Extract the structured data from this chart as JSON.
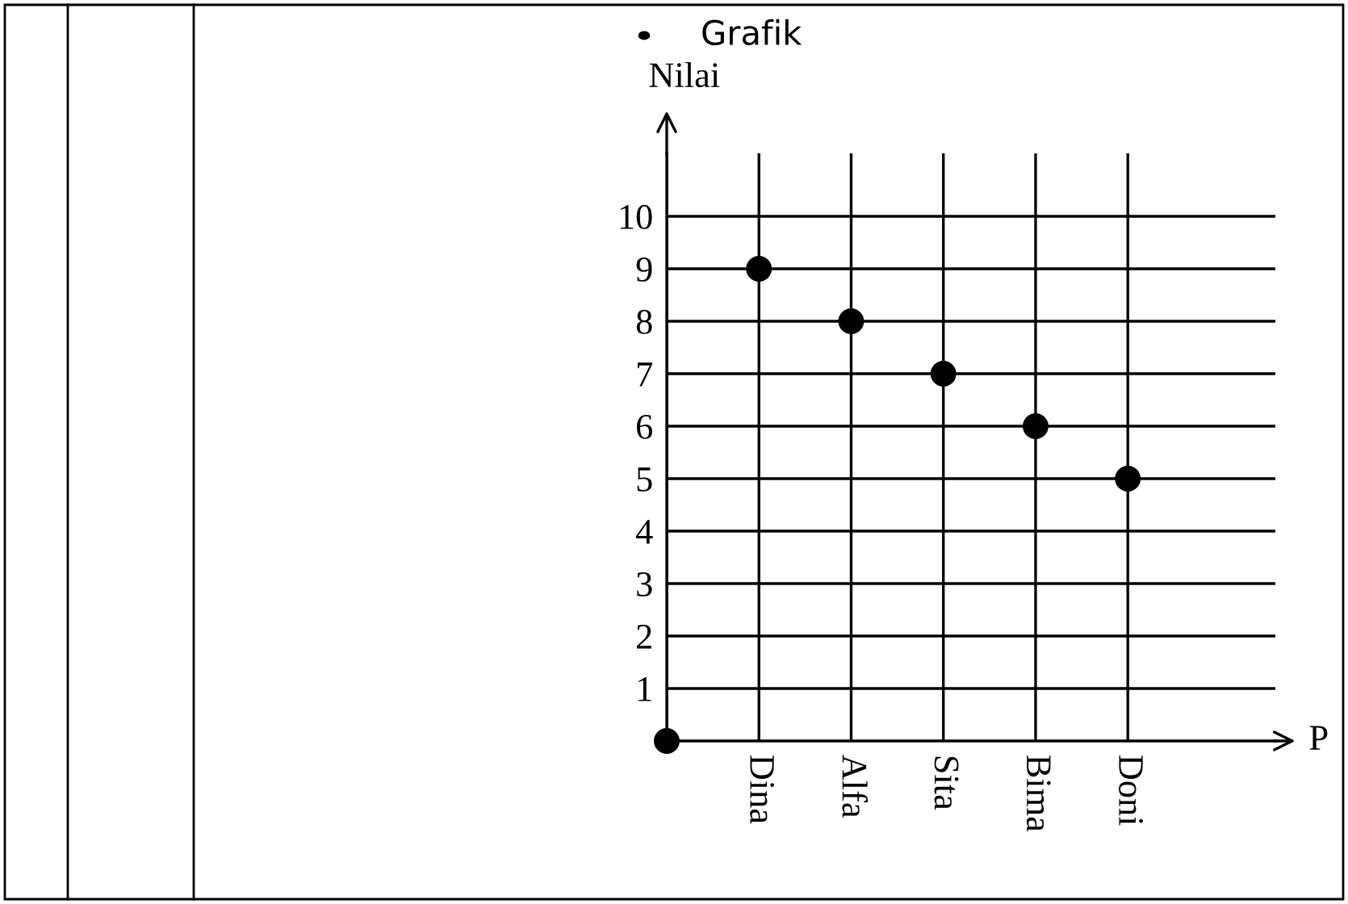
{
  "chart_data": {
    "type": "scatter",
    "title": "Grafik",
    "xlabel": "P",
    "ylabel": "Nilai",
    "categories": [
      null,
      "Dina",
      "Alfa",
      "Sita",
      "Bima",
      "Doni"
    ],
    "series": [
      {
        "color": "#000000",
        "values": [
          0,
          9,
          8,
          7,
          6,
          5
        ]
      }
    ],
    "ylim": [
      0,
      11.2
    ],
    "yticks": [
      1,
      2,
      3,
      4,
      5,
      6,
      7,
      8,
      9,
      10
    ],
    "grid": true,
    "marker": "circle",
    "legend": false
  }
}
